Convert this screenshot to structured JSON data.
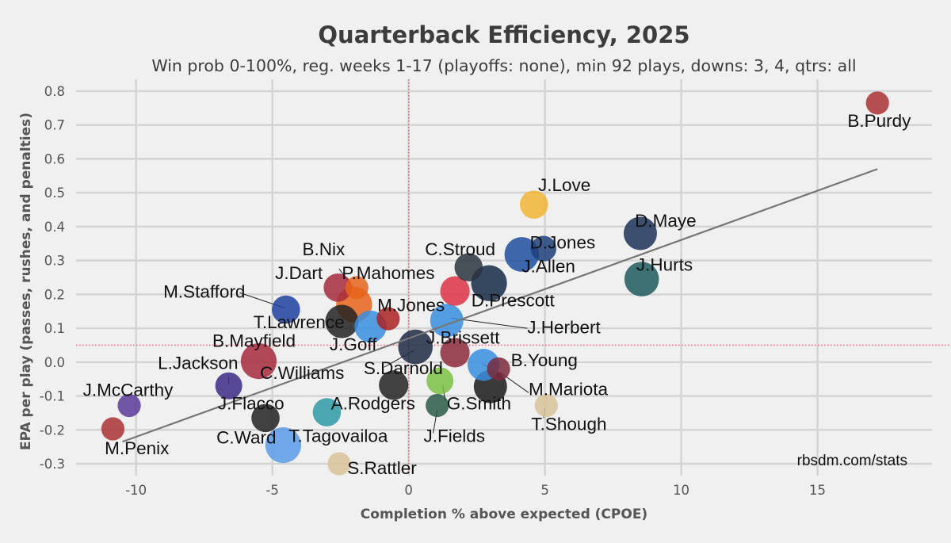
{
  "chart_data": {
    "type": "scatter",
    "title": "Quarterback Efficiency, 2025",
    "subtitle": "Win prob 0-100%, reg. weeks 1-17 (playoffs: none), min 92 plays, downs: 3, 4, qtrs: all",
    "xlabel": "Completion % above expected (CPOE)",
    "ylabel": "EPA per play (passes, rushes, and penalties)",
    "credit": "rbsdm.com/stats",
    "xlim": [
      -12.2,
      19.2
    ],
    "ylim": [
      -0.335,
      0.835
    ],
    "x_ticks": [
      -10,
      -5,
      0,
      5,
      10,
      15
    ],
    "y_ticks": [
      -0.3,
      -0.2,
      -0.1,
      0.0,
      0.1,
      0.2,
      0.3,
      0.4,
      0.5,
      0.6,
      0.7,
      0.8
    ],
    "x_tick_labels": [
      "-10",
      "-5",
      "0",
      "5",
      "10",
      "15"
    ],
    "y_tick_labels": [
      "-0.3",
      "-0.2",
      "-0.1",
      "0.0",
      "0.1",
      "0.2",
      "0.3",
      "0.4",
      "0.5",
      "0.6",
      "0.7",
      "0.8"
    ],
    "grid": true,
    "reference_lines": {
      "x": 0.0,
      "y": 0.05,
      "color": "#e06060"
    },
    "trend_line": {
      "x": [
        -10.5,
        17.2
      ],
      "y": [
        -0.235,
        0.57
      ],
      "color": "#777777"
    },
    "points": [
      {
        "name": "B.Purdy",
        "x": 17.2,
        "y": 0.765,
        "size": 0.35,
        "color": "#aa3333"
      },
      {
        "name": "J.Love",
        "x": 4.6,
        "y": 0.465,
        "size": 0.55,
        "color": "#f2b535"
      },
      {
        "name": "D.Maye",
        "x": 8.5,
        "y": 0.38,
        "size": 0.75,
        "color": "#1d3357"
      },
      {
        "name": "D.Jones",
        "x": 4.95,
        "y": 0.335,
        "size": 0.45,
        "color": "#1f3f7a"
      },
      {
        "name": "J.Allen",
        "x": 4.15,
        "y": 0.318,
        "size": 0.8,
        "color": "#1f4e9e"
      },
      {
        "name": "J.Hurts",
        "x": 8.55,
        "y": 0.245,
        "size": 0.8,
        "color": "#1d5b5e"
      },
      {
        "name": "C.Stroud",
        "x": 2.2,
        "y": 0.28,
        "size": 0.55,
        "color": "#2a3440"
      },
      {
        "name": "D.Prescott",
        "x": 2.95,
        "y": 0.233,
        "size": 0.85,
        "color": "#152a45"
      },
      {
        "name": "P.Mahomes",
        "x": -2.0,
        "y": 0.17,
        "size": 0.85,
        "color": "#e8641b"
      },
      {
        "name": "J.Dart",
        "x": -2.6,
        "y": 0.22,
        "size": 0.55,
        "color": "#a52a3c"
      },
      {
        "name": "B.Nix",
        "x": -1.9,
        "y": 0.22,
        "size": 0.35,
        "color": "#e8641b"
      },
      {
        "name": "M.Stafford",
        "x": -4.5,
        "y": 0.155,
        "size": 0.55,
        "color": "#1f3f9e"
      },
      {
        "name": "T.Lawrence",
        "x": -2.45,
        "y": 0.12,
        "size": 0.75,
        "color": "#222222"
      },
      {
        "name": "M.Jones",
        "x": -0.75,
        "y": 0.128,
        "size": 0.35,
        "color": "#aa2222"
      },
      {
        "name": "J.Goff",
        "x": -1.4,
        "y": 0.105,
        "size": 0.7,
        "color": "#3a8ee0"
      },
      {
        "name": "J.Herbert",
        "x": 1.4,
        "y": 0.123,
        "size": 0.75,
        "color": "#3a8ee0"
      },
      {
        "name": "J.Brissett",
        "x": 1.7,
        "y": 0.21,
        "size": 0.6,
        "color": "#dd3344"
      },
      {
        "name": "B.Mayfield",
        "x": -5.5,
        "y": 0.003,
        "size": 0.85,
        "color": "#a52a3c"
      },
      {
        "name": "C.Williams",
        "x": 0.25,
        "y": 0.045,
        "size": 0.8,
        "color": "#1d2a44"
      },
      {
        "name": "S.Darnold",
        "x": 1.7,
        "y": 0.028,
        "size": 0.6,
        "color": "#8c2a3c"
      },
      {
        "name": "B.Young",
        "x": 2.75,
        "y": -0.008,
        "size": 0.7,
        "color": "#3a8ee0"
      },
      {
        "name": "M.Mariota",
        "x": 3.3,
        "y": -0.02,
        "size": 0.35,
        "color": "#7a2a3c"
      },
      {
        "name": "L.Jackson",
        "x": -6.6,
        "y": -0.07,
        "size": 0.5,
        "color": "#3c2a85"
      },
      {
        "name": "A.Rodgers",
        "x": -0.55,
        "y": -0.068,
        "size": 0.6,
        "color": "#222222"
      },
      {
        "name": "G.Smith",
        "x": 1.15,
        "y": -0.055,
        "size": 0.5,
        "color": "#7ac143"
      },
      {
        "name": "J.Fields",
        "x": 1.05,
        "y": -0.128,
        "size": 0.35,
        "color": "#2a5a45"
      },
      {
        "name": "J.Flacco",
        "x": -5.25,
        "y": -0.165,
        "size": 0.55,
        "color": "#222222"
      },
      {
        "name": "J.McCarthy",
        "x": -10.25,
        "y": -0.128,
        "size": 0.35,
        "color": "#5a3a99"
      },
      {
        "name": "M.Penix",
        "x": -10.85,
        "y": -0.197,
        "size": 0.35,
        "color": "#aa3333"
      },
      {
        "name": "T.Tagovailoa",
        "x": -3.0,
        "y": -0.148,
        "size": 0.55,
        "color": "#2d9aa5"
      },
      {
        "name": "C.Ward",
        "x": -4.6,
        "y": -0.245,
        "size": 0.85,
        "color": "#5b9be8"
      },
      {
        "name": "S.Rattler",
        "x": -2.55,
        "y": -0.3,
        "size": 0.35,
        "color": "#d8c39a"
      },
      {
        "name": "M.Mariota_dark",
        "x": 3.0,
        "y": -0.072,
        "size": 0.75,
        "color": "#1a1a1a"
      },
      {
        "name": "T.Shough",
        "x": 5.05,
        "y": -0.128,
        "size": 0.35,
        "color": "#d8c39a"
      }
    ],
    "labels": [
      {
        "text": "B.Purdy",
        "x": 16.1,
        "y": 0.695,
        "anchor": "start"
      },
      {
        "text": "J.Love",
        "x": 4.75,
        "y": 0.505,
        "anchor": "start"
      },
      {
        "text": "D.Maye",
        "x": 8.3,
        "y": 0.4,
        "anchor": "start"
      },
      {
        "text": "D.Jones",
        "x": 4.45,
        "y": 0.335,
        "anchor": "start"
      },
      {
        "text": "C.Stroud",
        "x": 0.6,
        "y": 0.315,
        "anchor": "start"
      },
      {
        "text": "B.Nix",
        "x": -3.9,
        "y": 0.315,
        "anchor": "start"
      },
      {
        "text": "J.Hurts",
        "x": 8.35,
        "y": 0.27,
        "anchor": "start"
      },
      {
        "text": "J.Allen",
        "x": 4.15,
        "y": 0.265,
        "anchor": "start"
      },
      {
        "text": "J.Dart",
        "x": -4.9,
        "y": 0.245,
        "anchor": "start"
      },
      {
        "text": "P.Mahomes",
        "x": -2.45,
        "y": 0.245,
        "anchor": "start"
      },
      {
        "text": "M.Stafford",
        "x": -9.0,
        "y": 0.19,
        "anchor": "start"
      },
      {
        "text": "D.Prescott",
        "x": 2.3,
        "y": 0.165,
        "anchor": "start"
      },
      {
        "text": "M.Jones",
        "x": -1.15,
        "y": 0.15,
        "anchor": "start"
      },
      {
        "text": "T.Lawrence",
        "x": -5.7,
        "y": 0.1,
        "anchor": "start"
      },
      {
        "text": "J.Herbert",
        "x": 4.35,
        "y": 0.085,
        "anchor": "start"
      },
      {
        "text": "J.Brissett",
        "x": 0.65,
        "y": 0.055,
        "anchor": "start"
      },
      {
        "text": "B.Mayfield",
        "x": -7.2,
        "y": 0.045,
        "anchor": "start"
      },
      {
        "text": "J.Goff",
        "x": -2.9,
        "y": 0.035,
        "anchor": "start"
      },
      {
        "text": "B.Young",
        "x": 3.75,
        "y": -0.012,
        "anchor": "start"
      },
      {
        "text": "L.Jackson",
        "x": -9.2,
        "y": -0.02,
        "anchor": "start"
      },
      {
        "text": "C.Williams",
        "x": -5.45,
        "y": -0.05,
        "anchor": "start"
      },
      {
        "text": "S.Darnold",
        "x": -1.65,
        "y": -0.035,
        "anchor": "start"
      },
      {
        "text": "M.Mariota",
        "x": 4.4,
        "y": -0.097,
        "anchor": "start"
      },
      {
        "text": "J.McCarthy",
        "x": -11.95,
        "y": -0.1,
        "anchor": "start"
      },
      {
        "text": "J.Flacco",
        "x": -7.0,
        "y": -0.14,
        "anchor": "start"
      },
      {
        "text": "A.Rodgers",
        "x": -2.85,
        "y": -0.14,
        "anchor": "start"
      },
      {
        "text": "G.Smith",
        "x": 1.4,
        "y": -0.14,
        "anchor": "start"
      },
      {
        "text": "T.Shough",
        "x": 4.5,
        "y": -0.2,
        "anchor": "start"
      },
      {
        "text": "C.Ward",
        "x": -7.05,
        "y": -0.24,
        "anchor": "start"
      },
      {
        "text": "T.Tagovailoa",
        "x": -4.4,
        "y": -0.235,
        "anchor": "start"
      },
      {
        "text": "J.Fields",
        "x": 0.55,
        "y": -0.235,
        "anchor": "start"
      },
      {
        "text": "M.Penix",
        "x": -11.15,
        "y": -0.272,
        "anchor": "start"
      },
      {
        "text": "S.Rattler",
        "x": -2.25,
        "y": -0.33,
        "anchor": "start"
      }
    ],
    "leader_lines": [
      {
        "from_x": -2.55,
        "from_y": 0.275,
        "to_x": -1.85,
        "to_y": 0.2
      },
      {
        "from_x": -6.2,
        "from_y": 0.205,
        "to_x": -4.55,
        "to_y": 0.16
      },
      {
        "from_x": 4.35,
        "from_y": 0.1,
        "to_x": 1.55,
        "to_y": 0.13
      },
      {
        "from_x": -0.9,
        "from_y": -0.015,
        "to_x": 0.2,
        "to_y": 0.035
      },
      {
        "from_x": -6.6,
        "from_y": -0.045,
        "to_x": -6.6,
        "to_y": -0.065
      },
      {
        "from_x": 3.2,
        "from_y": -0.025,
        "to_x": 2.7,
        "to_y": -0.005
      },
      {
        "from_x": 4.4,
        "from_y": -0.09,
        "to_x": 3.35,
        "to_y": -0.03
      },
      {
        "from_x": 4.95,
        "from_y": -0.165,
        "to_x": 5.0,
        "to_y": -0.135
      },
      {
        "from_x": 0.9,
        "from_y": -0.21,
        "to_x": 1.05,
        "to_y": -0.14
      },
      {
        "from_x": 1.35,
        "from_y": -0.115,
        "to_x": 1.25,
        "to_y": -0.07
      }
    ]
  }
}
